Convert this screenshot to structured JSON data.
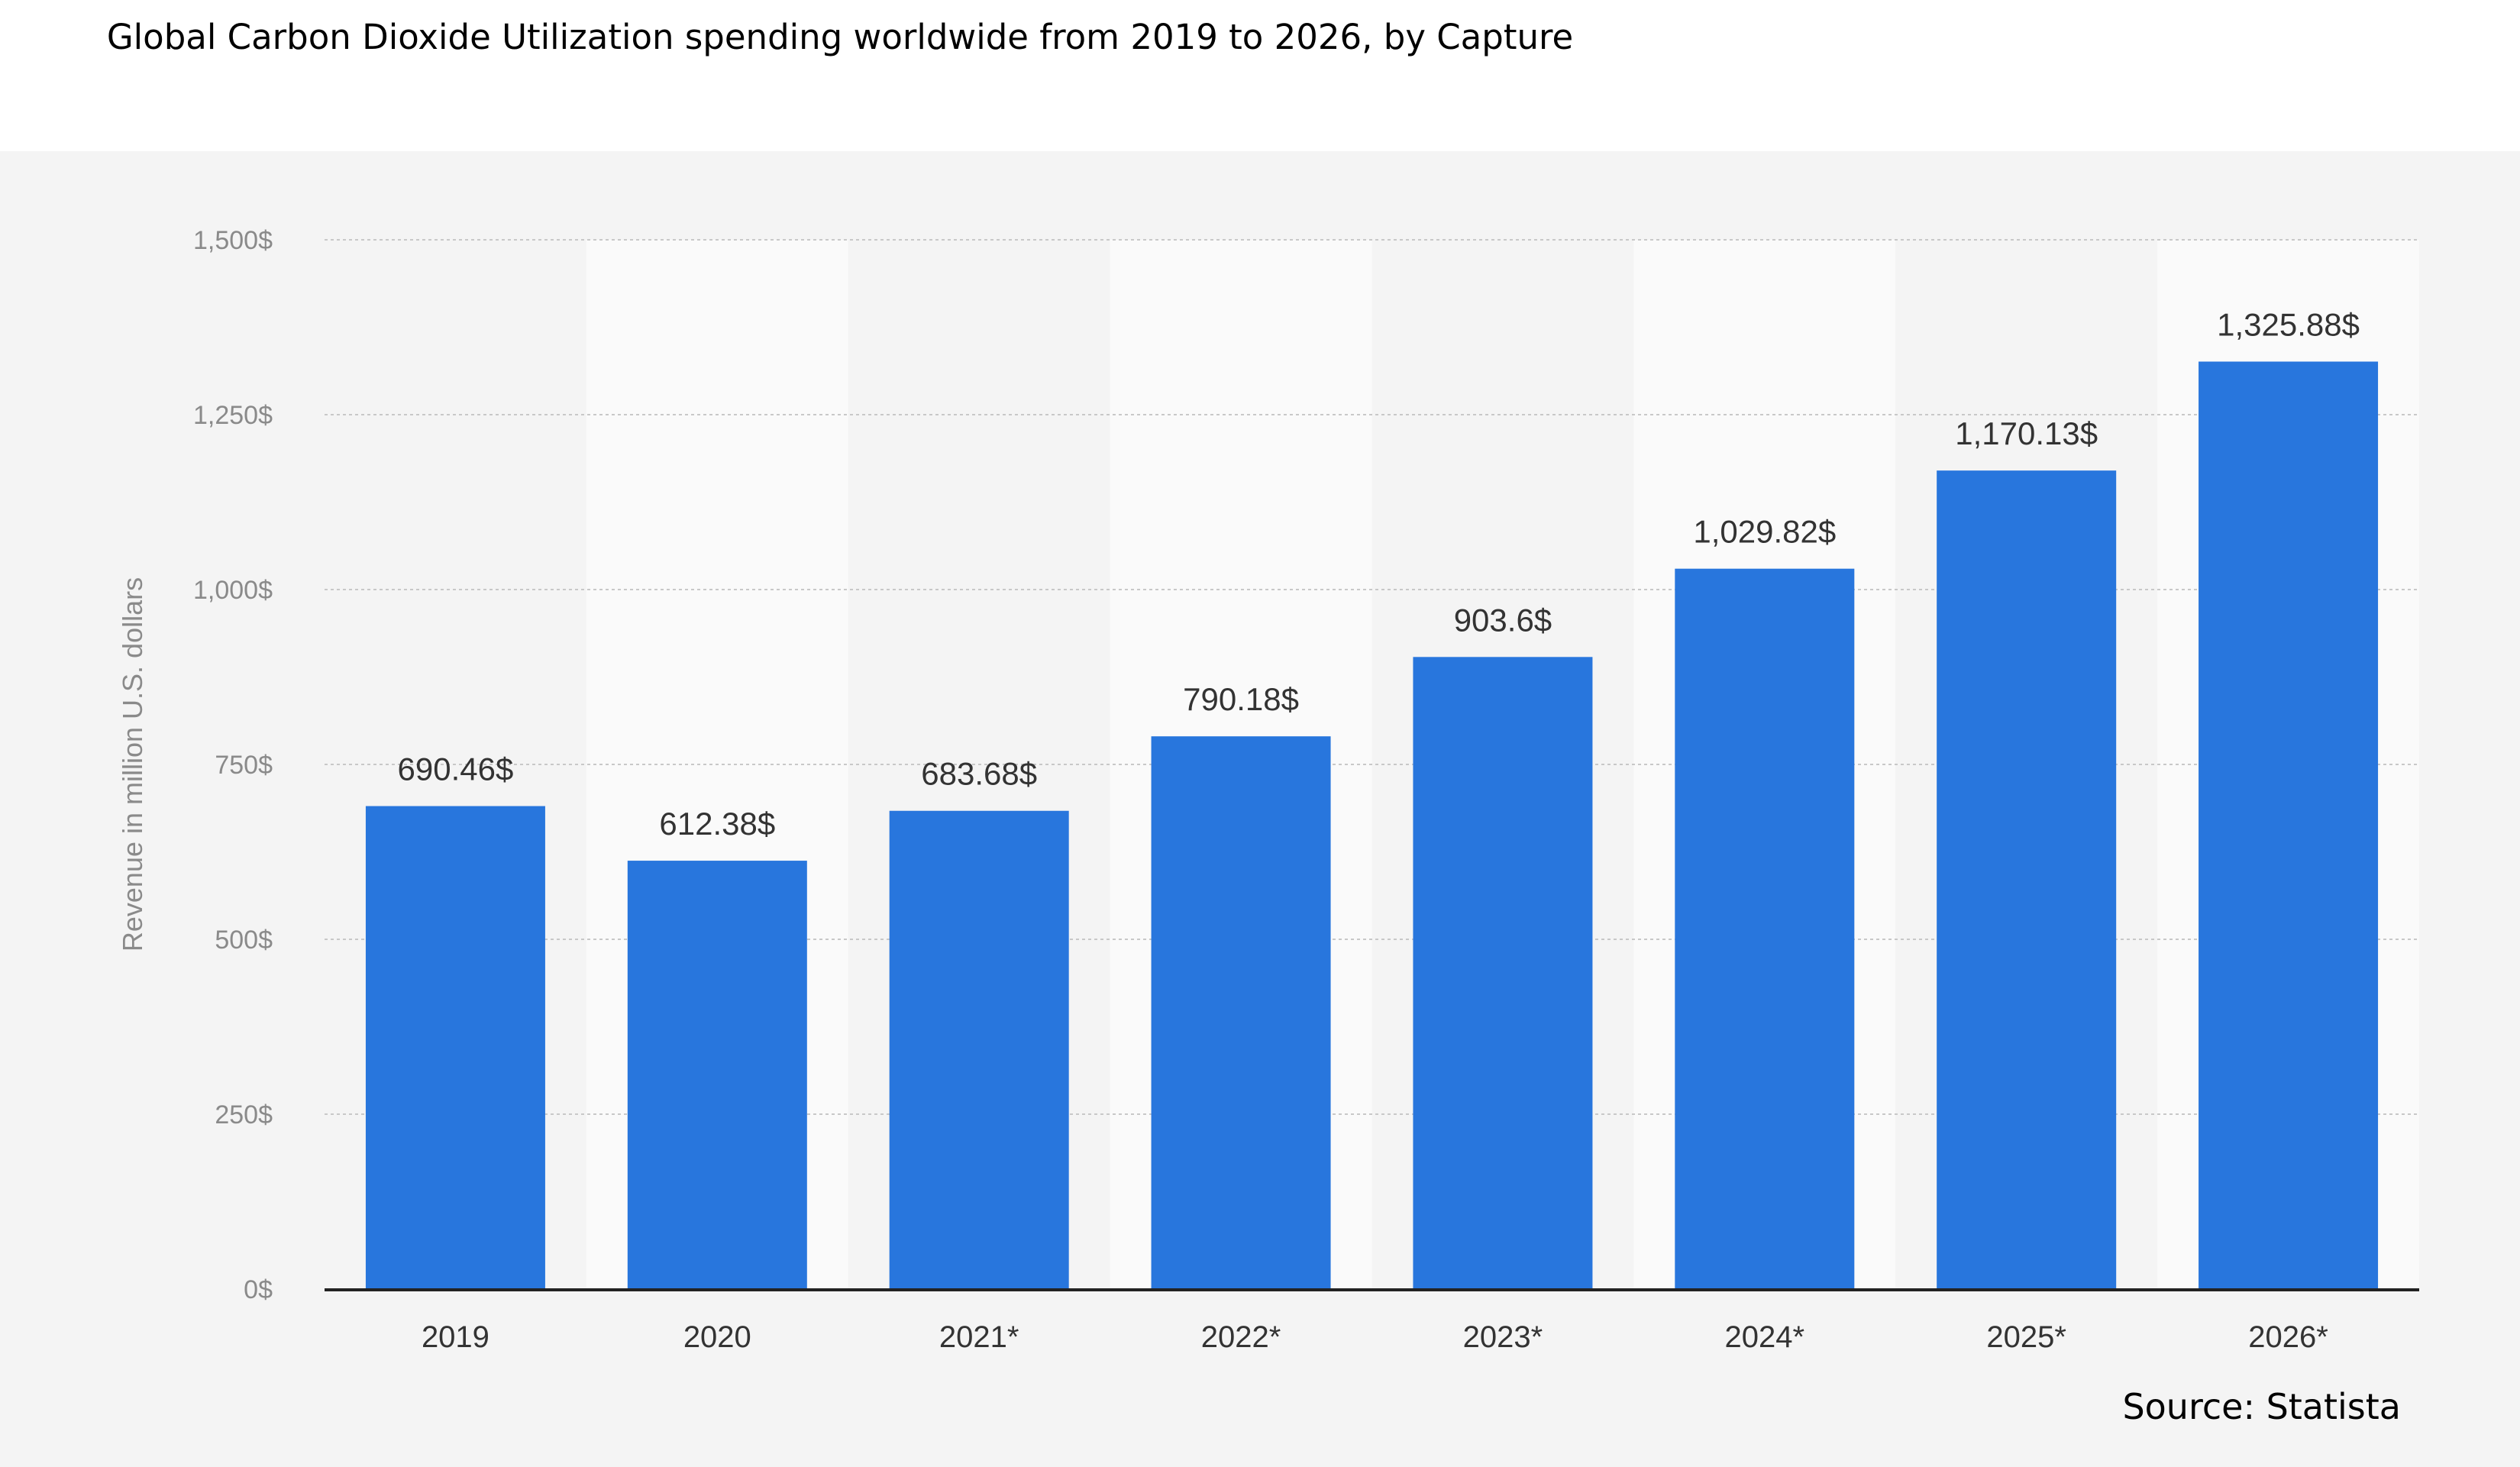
{
  "chart_data": {
    "type": "bar",
    "title": "Global Carbon Dioxide Utilization spending worldwide from 2019 to 2026, by Capture",
    "source": "Source: Statista",
    "xlabel": "",
    "ylabel": "Revenue in million U.S. dollars",
    "categories": [
      "2019",
      "2020",
      "2021*",
      "2022*",
      "2023*",
      "2024*",
      "2025*",
      "2026*"
    ],
    "values": [
      690.46,
      612.38,
      683.68,
      790.18,
      903.6,
      1029.82,
      1170.13,
      1325.88
    ],
    "value_labels": [
      "690.46$",
      "612.38$",
      "683.68$",
      "790.18$",
      "903.6$",
      "1,029.82$",
      "1,170.13$",
      "1,325.88$"
    ],
    "yticks": [
      0,
      250,
      500,
      750,
      1000,
      1250,
      1500
    ],
    "ytick_labels": [
      "0$",
      "250$",
      "500$",
      "750$",
      "1,000$",
      "1,250$",
      "1,500$"
    ],
    "ylim": [
      0,
      1500
    ],
    "grid": true,
    "legend": "none",
    "colors": {
      "bar": "#2876dd",
      "panel_background": "#f4f4f4",
      "band_light": "#fafafa",
      "band_dark": "#f4f4f4",
      "grid": "#c8c8c8",
      "axis": "#222222"
    }
  }
}
